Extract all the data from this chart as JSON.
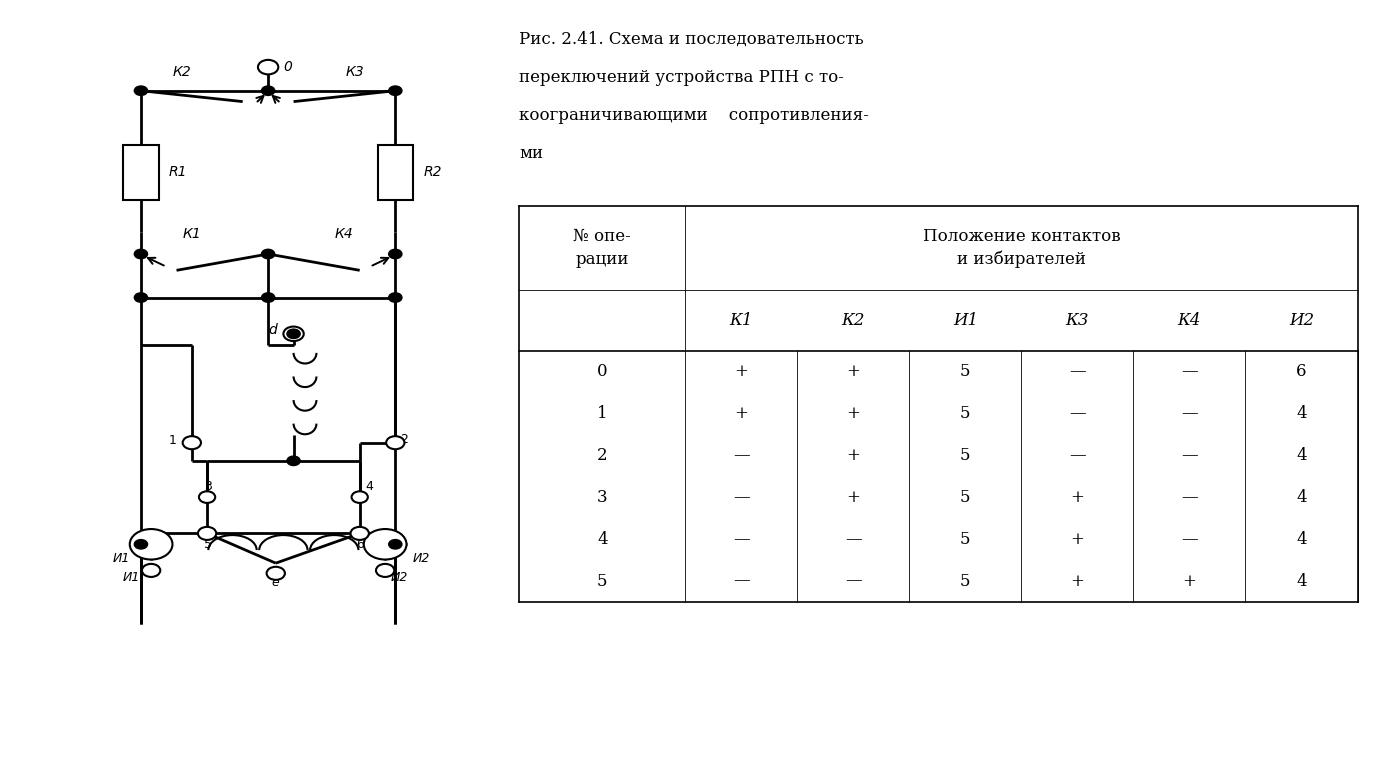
{
  "title_line1": "Рис. 2.41. Схема и последовательность",
  "title_line2": "переключений устройства РПН с то-",
  "title_line3": "коограничивающими    сопротивления-",
  "title_line4": "ми",
  "col_headers": [
    "К1",
    "К2",
    "И1",
    "К3",
    "К4",
    "И2"
  ],
  "row_labels": [
    "0",
    "1",
    "2",
    "3",
    "4",
    "5"
  ],
  "table_data": [
    [
      "+",
      "+",
      "5",
      "—",
      "—",
      "6"
    ],
    [
      "+",
      "+",
      "5",
      "—",
      "—",
      "4"
    ],
    [
      "—",
      "+",
      "5",
      "—",
      "—",
      "4"
    ],
    [
      "—",
      "+",
      "5",
      "+",
      "—",
      "4"
    ],
    [
      "—",
      "—",
      "5",
      "+",
      "—",
      "4"
    ],
    [
      "—",
      "—",
      "5",
      "+",
      "+",
      "4"
    ]
  ],
  "bg_color": "#ffffff",
  "text_color": "#000000"
}
